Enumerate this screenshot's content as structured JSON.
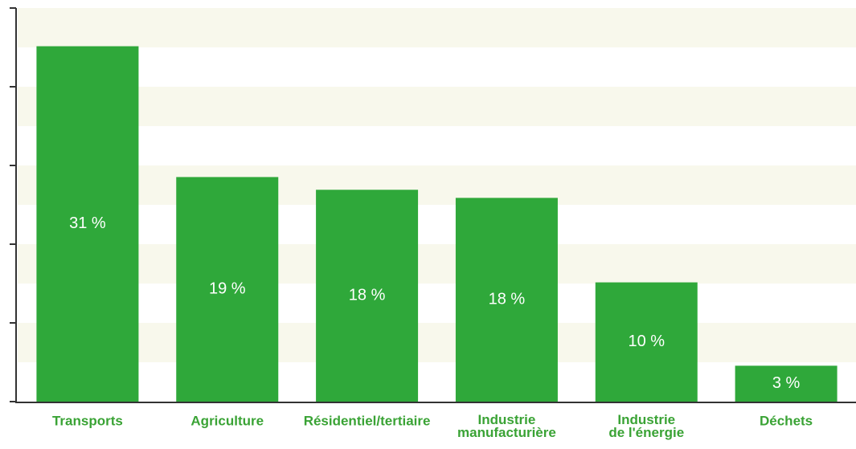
{
  "chart_data": {
    "type": "bar",
    "categories": [
      "Transports",
      "Agriculture",
      "Résidentiel/tertiaire",
      "Industrie manufacturière",
      "Industrie de l'énergie",
      "Déchets"
    ],
    "values": [
      30.7,
      19.4,
      18.3,
      17.6,
      10.3,
      3.1
    ],
    "value_labels": [
      "31 %",
      "19 %",
      "18 %",
      "18 %",
      "10 %",
      "3 %"
    ],
    "color": "#2fa83a",
    "ylim": [
      0,
      34
    ],
    "yticks": [
      0,
      6.8,
      13.6,
      20.4,
      27.2,
      34
    ],
    "grid": true
  }
}
